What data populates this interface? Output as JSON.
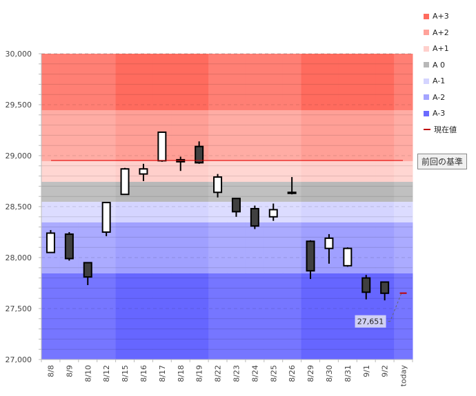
{
  "chart_data": {
    "type": "candlestick",
    "title": "",
    "xlabel": "",
    "ylabel": "",
    "ylim": [
      27000,
      30000
    ],
    "yticks": [
      27000,
      27500,
      28000,
      28500,
      29000,
      29500,
      30000
    ],
    "ytick_labels": [
      "27,000",
      "27,500",
      "28,000",
      "28,500",
      "29,000",
      "29,500",
      "30,000"
    ],
    "minor_step": 100,
    "categories": [
      "8/8",
      "8/9",
      "8/10",
      "8/12",
      "8/15",
      "8/16",
      "8/17",
      "8/18",
      "8/19",
      "8/22",
      "8/23",
      "8/24",
      "8/25",
      "8/26",
      "8/29",
      "8/30",
      "8/31",
      "9/1",
      "9/2",
      "today"
    ],
    "candles": [
      {
        "date": "8/8",
        "open": 28050,
        "high": 28270,
        "low": 28050,
        "close": 28240
      },
      {
        "date": "8/9",
        "open": 28230,
        "high": 28250,
        "low": 27970,
        "close": 27990
      },
      {
        "date": "8/10",
        "open": 27950,
        "high": 27950,
        "low": 27730,
        "close": 27810
      },
      {
        "date": "8/12",
        "open": 28250,
        "high": 28540,
        "low": 28210,
        "close": 28540
      },
      {
        "date": "8/15",
        "open": 28620,
        "high": 28880,
        "low": 28620,
        "close": 28870
      },
      {
        "date": "8/16",
        "open": 28820,
        "high": 28920,
        "low": 28750,
        "close": 28870
      },
      {
        "date": "8/17",
        "open": 28950,
        "high": 29230,
        "low": 28940,
        "close": 29230
      },
      {
        "date": "8/18",
        "open": 28960,
        "high": 28990,
        "low": 28850,
        "close": 28940
      },
      {
        "date": "8/19",
        "open": 29090,
        "high": 29140,
        "low": 28920,
        "close": 28930
      },
      {
        "date": "8/22",
        "open": 28640,
        "high": 28820,
        "low": 28590,
        "close": 28790
      },
      {
        "date": "8/23",
        "open": 28580,
        "high": 28580,
        "low": 28400,
        "close": 28450
      },
      {
        "date": "8/24",
        "open": 28480,
        "high": 28510,
        "low": 28280,
        "close": 28310
      },
      {
        "date": "8/25",
        "open": 28400,
        "high": 28530,
        "low": 28360,
        "close": 28470
      },
      {
        "date": "8/26",
        "open": 28640,
        "high": 28790,
        "low": 28620,
        "close": 28630
      },
      {
        "date": "8/29",
        "open": 28160,
        "high": 28170,
        "low": 27790,
        "close": 27870
      },
      {
        "date": "8/30",
        "open": 28090,
        "high": 28230,
        "low": 27940,
        "close": 28190
      },
      {
        "date": "8/31",
        "open": 27920,
        "high": 28100,
        "low": 27910,
        "close": 28090
      },
      {
        "date": "9/1",
        "open": 27800,
        "high": 27830,
        "low": 27590,
        "close": 27660
      },
      {
        "date": "9/2",
        "open": 27760,
        "high": 27760,
        "low": 27580,
        "close": 27650
      }
    ],
    "current_value": {
      "date": "today",
      "value": 27651,
      "label": "27,651"
    },
    "reference_line": {
      "value": 28953,
      "label": "前回の基準"
    },
    "bands": [
      {
        "name": "A+3",
        "from": 29446,
        "to": 30000,
        "color": "#ff7f74",
        "color_alt": "#ff6b5e"
      },
      {
        "name": "A+2",
        "from": 28946,
        "to": 29446,
        "color": "#ffaca4",
        "color_alt": "#ff9f96"
      },
      {
        "name": "A+1",
        "from": 28743,
        "to": 28946,
        "color": "#ffd6d2",
        "color_alt": "#ffcfcb"
      },
      {
        "name": "A 0",
        "from": 28547,
        "to": 28743,
        "color": "#c0c0c0",
        "color_alt": "#b8b8b8"
      },
      {
        "name": "A-1",
        "from": 28345,
        "to": 28547,
        "color": "#dcdcff",
        "color_alt": "#d4d4ff"
      },
      {
        "name": "A-2",
        "from": 27845,
        "to": 28345,
        "color": "#ababff",
        "color_alt": "#a0a0ff"
      },
      {
        "name": "A-3",
        "from": 27000,
        "to": 27845,
        "color": "#7676ff",
        "color_alt": "#6666ff"
      }
    ],
    "week_shading": [
      false,
      false,
      false,
      false,
      true,
      true,
      true,
      true,
      true,
      false,
      false,
      false,
      false,
      false,
      true,
      true,
      true,
      true,
      true,
      false
    ],
    "legend": [
      {
        "label": "A+3",
        "color": "#ff6b5e",
        "kind": "box"
      },
      {
        "label": "A+2",
        "color": "#ffa29a",
        "kind": "box"
      },
      {
        "label": "A+1",
        "color": "#ffd0cc",
        "kind": "box"
      },
      {
        "label": "A 0",
        "color": "#b8b8b8",
        "kind": "box"
      },
      {
        "label": "A-1",
        "color": "#d4d4ff",
        "kind": "box"
      },
      {
        "label": "A-2",
        "color": "#a4a4ff",
        "kind": "box"
      },
      {
        "label": "A-3",
        "color": "#6a6aff",
        "kind": "box"
      },
      {
        "label": "現在値",
        "color": "#c00000",
        "kind": "line"
      }
    ],
    "legend_position": "right",
    "colors": {
      "up": "#ffffff",
      "down": "#404040",
      "outline": "#000000",
      "reference": "#e00000",
      "current": "#c00000"
    }
  }
}
